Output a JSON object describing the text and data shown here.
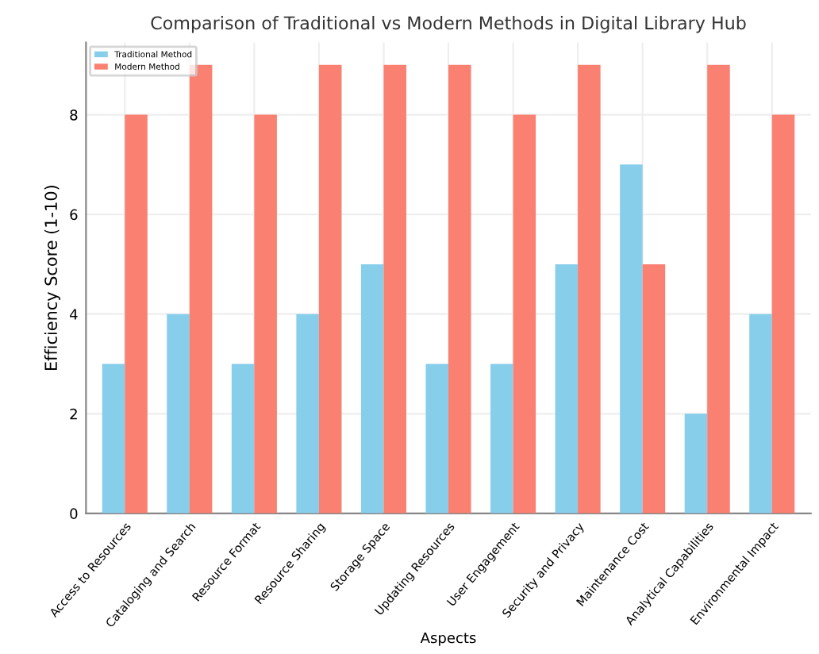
{
  "chart_data": {
    "type": "bar",
    "title": "Comparison of Traditional vs Modern Methods in Digital Library Hub",
    "xlabel": "Aspects",
    "ylabel": "Efficiency Score (1-10)",
    "categories": [
      "Access to Resources",
      "Cataloging and Search",
      "Resource Format",
      "Resource Sharing",
      "Storage Space",
      "Updating Resources",
      "User Engagement",
      "Security and Privacy",
      "Maintenance Cost",
      "Analytical Capabilities",
      "Environmental Impact"
    ],
    "series": [
      {
        "name": "Traditional Method",
        "color": "#87ceeb",
        "values": [
          3,
          4,
          3,
          4,
          5,
          3,
          3,
          5,
          7,
          2,
          4
        ]
      },
      {
        "name": "Modern Method",
        "color": "#fa8072",
        "values": [
          8,
          9,
          8,
          9,
          9,
          9,
          8,
          9,
          5,
          9,
          8
        ]
      }
    ],
    "ylim": [
      0,
      9.45
    ],
    "yticks": [
      0,
      2,
      4,
      6,
      8
    ],
    "grid": true,
    "legend": "top left"
  }
}
